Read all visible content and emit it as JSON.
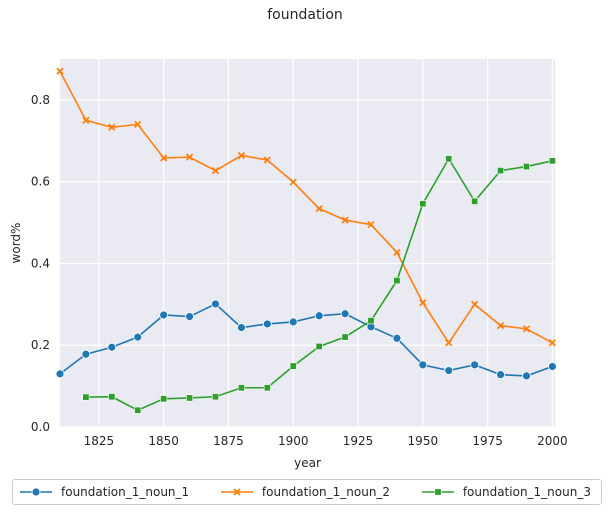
{
  "chart_data": {
    "type": "line",
    "title": "foundation",
    "xlabel": "year",
    "ylabel": "word%",
    "xlim": [
      1810,
      2001
    ],
    "ylim": [
      0,
      0.9
    ],
    "xticks": [
      1825,
      1850,
      1875,
      1900,
      1925,
      1950,
      1975,
      2000
    ],
    "yticks": [
      0.0,
      0.2,
      0.4,
      0.6,
      0.8
    ],
    "grid": true,
    "legend_position": "bottom",
    "series": [
      {
        "name": "foundation_1_noun_1",
        "color": "#1f77b4",
        "marker": "circle",
        "x": [
          1810,
          1820,
          1830,
          1840,
          1850,
          1860,
          1870,
          1880,
          1890,
          1900,
          1910,
          1920,
          1930,
          1940,
          1950,
          1960,
          1970,
          1980,
          1990,
          2000
        ],
        "y": [
          0.13,
          0.178,
          0.195,
          0.22,
          0.274,
          0.27,
          0.301,
          0.243,
          0.252,
          0.257,
          0.272,
          0.277,
          0.245,
          0.217,
          0.152,
          0.138,
          0.152,
          0.128,
          0.125,
          0.148
        ]
      },
      {
        "name": "foundation_1_noun_2",
        "color": "#ff7f0e",
        "marker": "x",
        "x": [
          1810,
          1820,
          1830,
          1840,
          1850,
          1860,
          1870,
          1880,
          1890,
          1900,
          1910,
          1920,
          1930,
          1940,
          1950,
          1960,
          1970,
          1980,
          1990,
          2000
        ],
        "y": [
          0.87,
          0.75,
          0.733,
          0.74,
          0.658,
          0.66,
          0.627,
          0.664,
          0.653,
          0.599,
          0.534,
          0.506,
          0.495,
          0.427,
          0.304,
          0.206,
          0.3,
          0.248,
          0.24,
          0.206
        ]
      },
      {
        "name": "foundation_1_noun_3",
        "color": "#2ca02c",
        "marker": "square",
        "x": [
          1820,
          1830,
          1840,
          1850,
          1860,
          1870,
          1880,
          1890,
          1900,
          1910,
          1920,
          1930,
          1940,
          1950,
          1960,
          1970,
          1980,
          1990,
          2000
        ],
        "y": [
          0.073,
          0.074,
          0.041,
          0.069,
          0.071,
          0.074,
          0.096,
          0.096,
          0.149,
          0.197,
          0.22,
          0.26,
          0.358,
          0.546,
          0.656,
          0.552,
          0.627,
          0.637,
          0.651
        ]
      }
    ]
  }
}
